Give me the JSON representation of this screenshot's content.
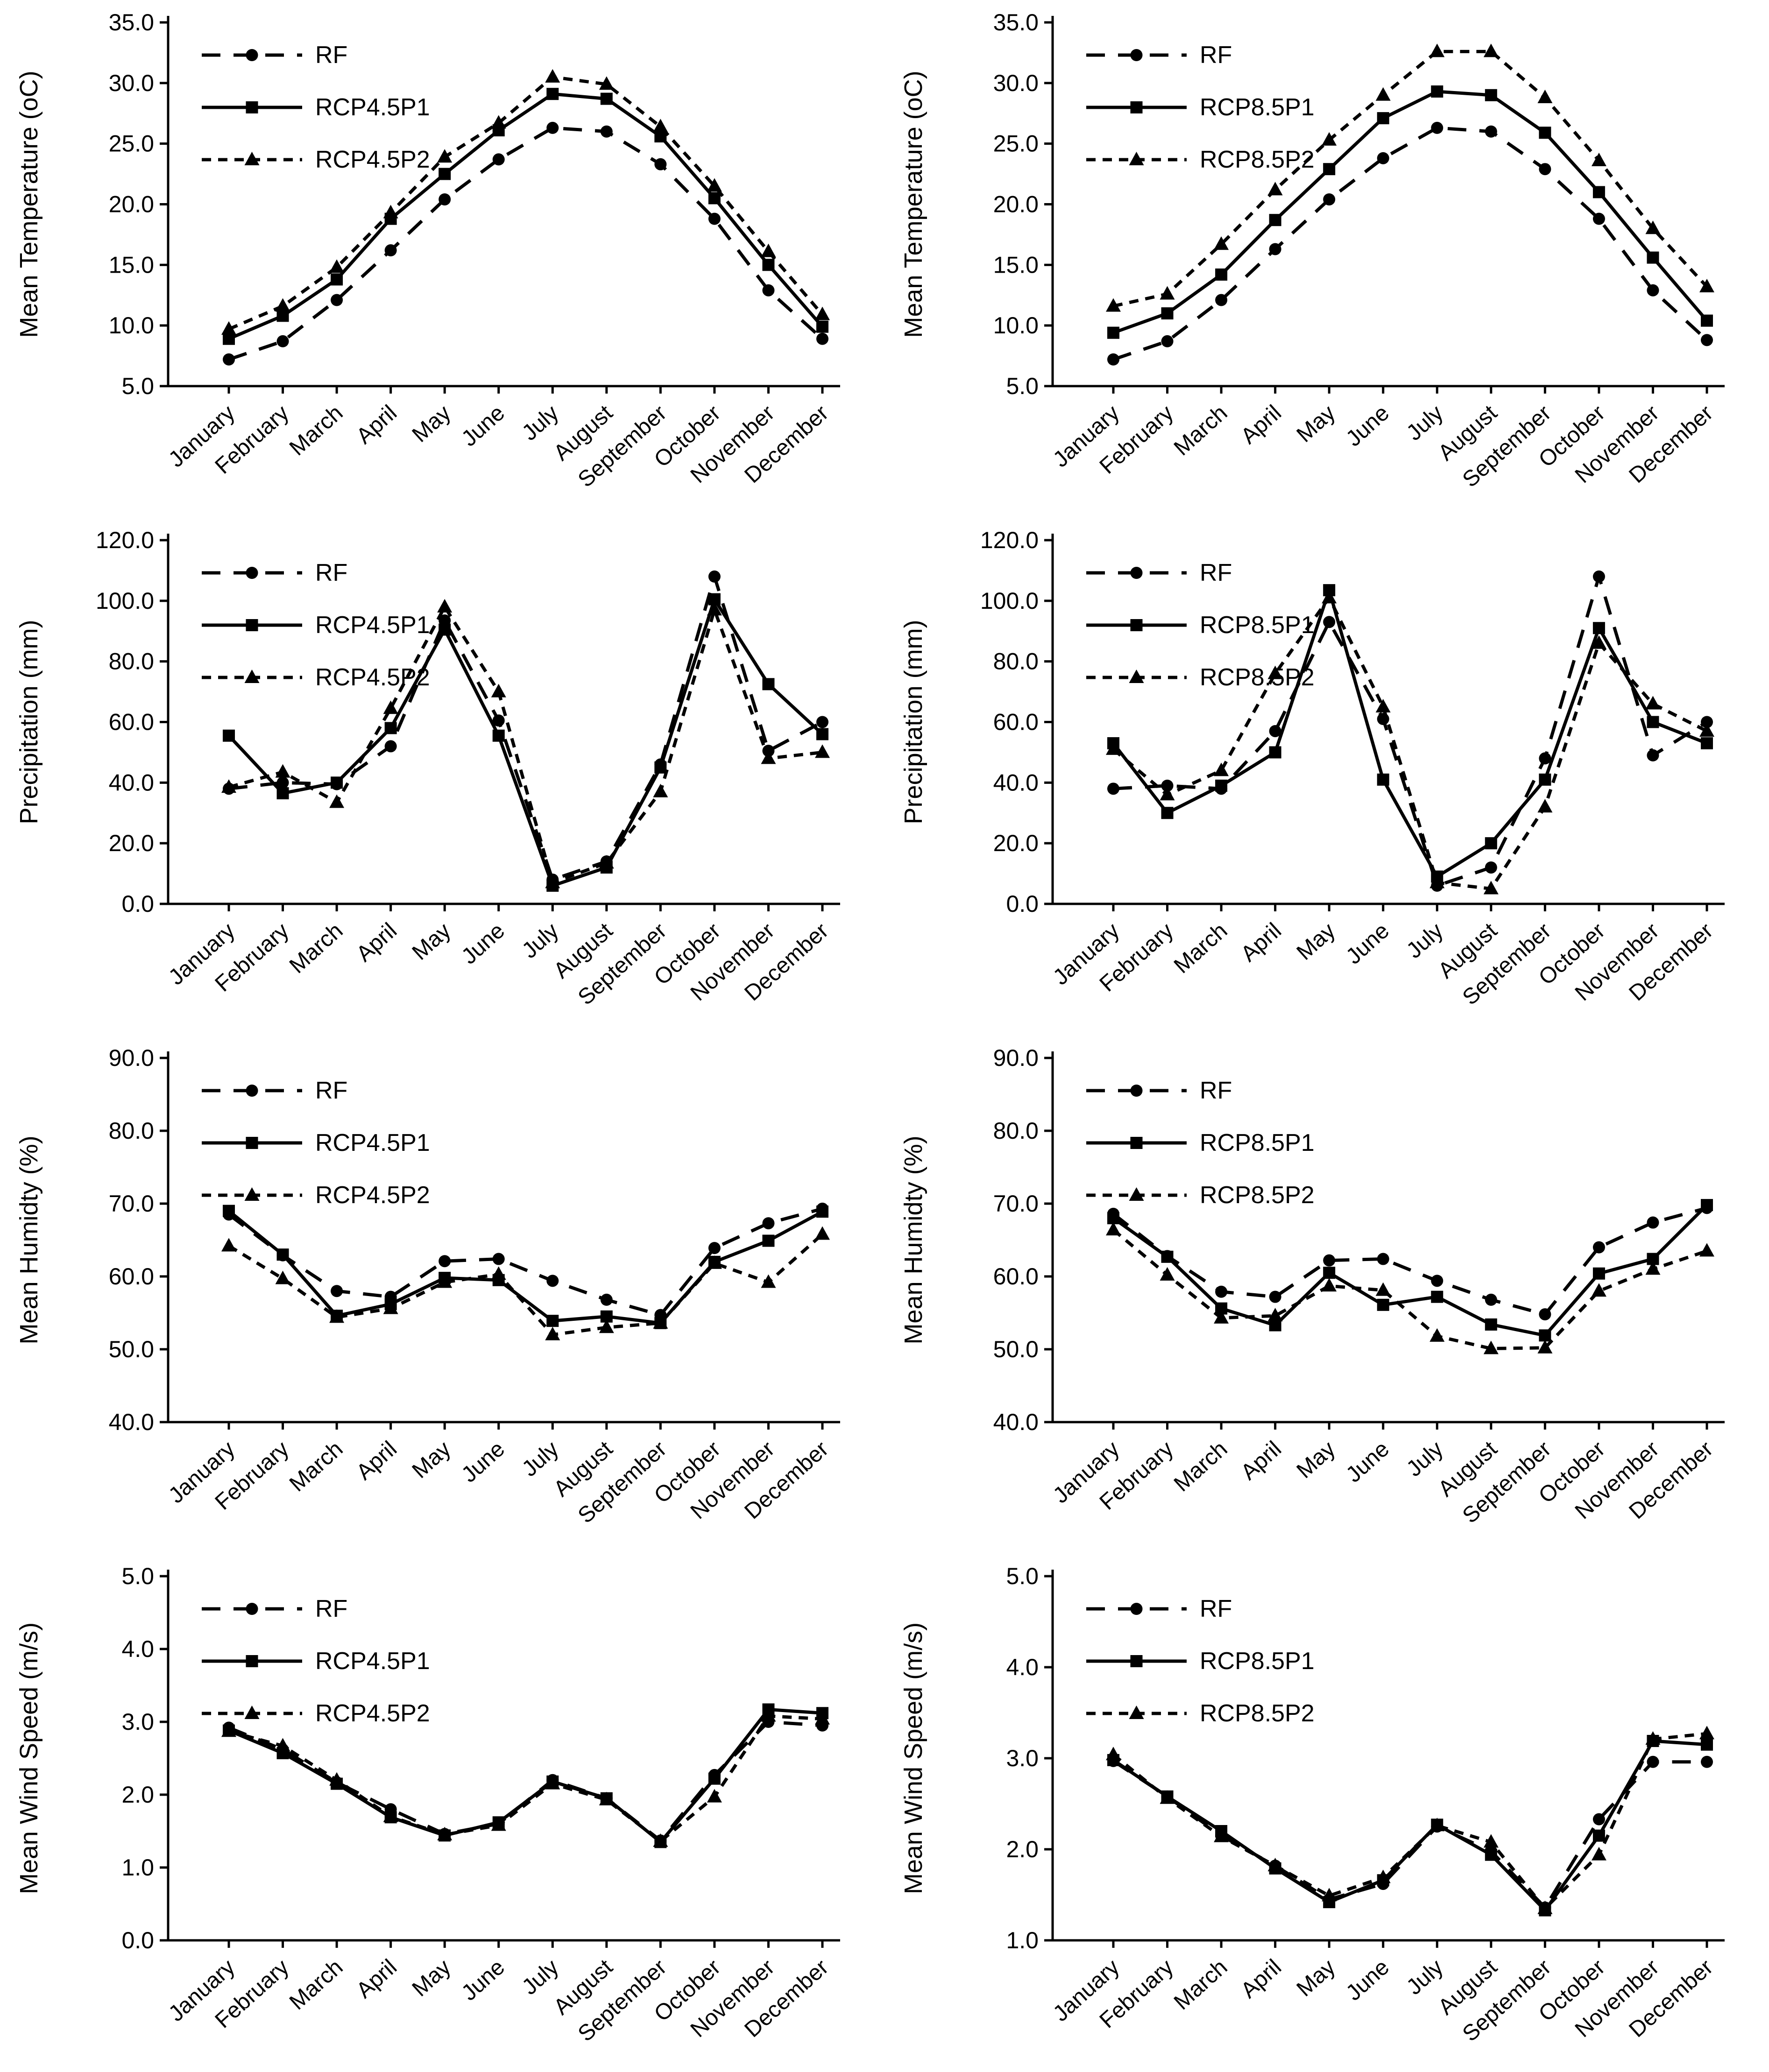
{
  "page": {
    "background_color": "#ffffff",
    "ink_color": "#000000",
    "description_months": [
      "January",
      "February",
      "March",
      "April",
      "May",
      "June",
      "July",
      "August",
      "September",
      "October",
      "November",
      "December"
    ]
  },
  "series_styles": {
    "RF": {
      "marker": "circle",
      "dash": "long",
      "legend_icon": "dashed-line-circle-marker"
    },
    "scenario1": {
      "marker": "square",
      "dash": "solid",
      "legend_icon": "solid-line-square-marker"
    },
    "scenario2": {
      "marker": "triangle",
      "dash": "short",
      "legend_icon": "dashed-line-triangle-marker"
    }
  },
  "chart_data": [
    {
      "id": "temperature-rcp45",
      "type": "line",
      "title": "",
      "xlabel": "",
      "ylabel": "Mean Temperature (oC)",
      "ylim": [
        5,
        35
      ],
      "yticks": [
        "5.0",
        "10.0",
        "15.0",
        "20.0",
        "25.0",
        "30.0",
        "35.0"
      ],
      "grid": false,
      "legend_position": "top-left",
      "categories": [
        "January",
        "February",
        "March",
        "April",
        "May",
        "June",
        "July",
        "August",
        "September",
        "October",
        "November",
        "December"
      ],
      "series": [
        {
          "name": "RF",
          "style": "RF",
          "values": [
            7.2,
            8.7,
            12.1,
            16.2,
            20.4,
            23.7,
            26.3,
            26.0,
            23.3,
            18.8,
            12.9,
            8.9
          ]
        },
        {
          "name": "RCP4.5P1",
          "style": "scenario1",
          "values": [
            8.9,
            10.8,
            13.8,
            18.8,
            22.5,
            26.1,
            29.1,
            28.7,
            25.6,
            20.5,
            15.0,
            9.9
          ]
        },
        {
          "name": "RCP4.5P2",
          "style": "scenario2",
          "values": [
            9.7,
            11.6,
            14.8,
            19.3,
            23.9,
            26.7,
            30.5,
            29.9,
            26.4,
            21.5,
            16.1,
            10.9
          ]
        }
      ]
    },
    {
      "id": "temperature-rcp85",
      "type": "line",
      "title": "",
      "xlabel": "",
      "ylabel": "Mean Temperature (oC)",
      "ylim": [
        5,
        35
      ],
      "yticks": [
        "5.0",
        "10.0",
        "15.0",
        "20.0",
        "25.0",
        "30.0",
        "35.0"
      ],
      "grid": false,
      "legend_position": "top-left",
      "categories": [
        "January",
        "February",
        "March",
        "April",
        "May",
        "June",
        "July",
        "August",
        "September",
        "October",
        "November",
        "December"
      ],
      "series": [
        {
          "name": "RF",
          "style": "RF",
          "values": [
            7.2,
            8.7,
            12.1,
            16.3,
            20.4,
            23.8,
            26.3,
            26.0,
            22.9,
            18.8,
            12.9,
            8.8
          ]
        },
        {
          "name": "RCP8.5P1",
          "style": "scenario1",
          "values": [
            9.4,
            11.0,
            14.2,
            18.7,
            22.9,
            27.1,
            29.3,
            29.0,
            25.9,
            21.0,
            15.6,
            10.4
          ]
        },
        {
          "name": "RCP8.5P2",
          "style": "scenario2",
          "values": [
            11.6,
            12.6,
            16.7,
            21.2,
            25.3,
            29.0,
            32.6,
            32.6,
            28.8,
            23.6,
            18.0,
            13.2
          ]
        }
      ]
    },
    {
      "id": "precipitation-rcp45",
      "type": "line",
      "title": "",
      "xlabel": "",
      "ylabel": "Precipitation (mm)",
      "ylim": [
        0,
        120
      ],
      "yticks": [
        "0.0",
        "20.0",
        "40.0",
        "60.0",
        "80.0",
        "100.0",
        "120.0"
      ],
      "grid": false,
      "legend_position": "top-left",
      "categories": [
        "January",
        "February",
        "March",
        "April",
        "May",
        "June",
        "July",
        "August",
        "September",
        "October",
        "November",
        "December"
      ],
      "series": [
        {
          "name": "RF",
          "style": "RF",
          "values": [
            38.0,
            40.0,
            39.5,
            52.0,
            93.5,
            60.5,
            8.0,
            14.0,
            46.0,
            108.0,
            50.5,
            60.0
          ]
        },
        {
          "name": "RCP4.5P1",
          "style": "scenario1",
          "values": [
            55.5,
            36.5,
            40.0,
            58.0,
            90.5,
            55.5,
            6.0,
            12.0,
            45.0,
            100.5,
            72.5,
            56.0
          ]
        },
        {
          "name": "RCP4.5P2",
          "style": "scenario2",
          "values": [
            38.5,
            43.5,
            33.5,
            64.5,
            98.0,
            70.0,
            7.0,
            13.5,
            37.0,
            97.0,
            48.0,
            50.0
          ]
        }
      ]
    },
    {
      "id": "precipitation-rcp85",
      "type": "line",
      "title": "",
      "xlabel": "",
      "ylabel": "Precipitation (mm)",
      "ylim": [
        0,
        120
      ],
      "yticks": [
        "0.0",
        "20.0",
        "40.0",
        "60.0",
        "80.0",
        "100.0",
        "120.0"
      ],
      "grid": false,
      "legend_position": "top-left",
      "categories": [
        "January",
        "February",
        "March",
        "April",
        "May",
        "June",
        "July",
        "August",
        "September",
        "October",
        "November",
        "December"
      ],
      "series": [
        {
          "name": "RF",
          "style": "RF",
          "values": [
            38.0,
            39.0,
            38.0,
            57.0,
            93.0,
            61.0,
            6.0,
            12.0,
            48.0,
            108.0,
            49.0,
            60.0
          ]
        },
        {
          "name": "RCP8.5P1",
          "style": "scenario1",
          "values": [
            53.0,
            30.0,
            39.0,
            50.0,
            103.5,
            41.0,
            9.0,
            20.0,
            41.0,
            91.0,
            60.0,
            53.0
          ]
        },
        {
          "name": "RCP8.5P2",
          "style": "scenario2",
          "values": [
            51.0,
            36.0,
            44.0,
            76.0,
            101.0,
            65.0,
            7.0,
            5.0,
            32.0,
            86.0,
            66.0,
            57.0
          ]
        }
      ]
    },
    {
      "id": "humidity-rcp45",
      "type": "line",
      "title": "",
      "xlabel": "",
      "ylabel": "Mean Humidty (%)",
      "ylim": [
        40,
        90
      ],
      "yticks": [
        "40.0",
        "50.0",
        "60.0",
        "70.0",
        "80.0",
        "90.0"
      ],
      "grid": false,
      "legend_position": "top-left",
      "categories": [
        "January",
        "February",
        "March",
        "April",
        "May",
        "June",
        "July",
        "August",
        "September",
        "October",
        "November",
        "December"
      ],
      "series": [
        {
          "name": "RF",
          "style": "RF",
          "values": [
            68.5,
            62.9,
            58.0,
            57.2,
            62.1,
            62.4,
            59.4,
            56.8,
            54.7,
            63.9,
            67.3,
            69.3
          ]
        },
        {
          "name": "RCP4.5P1",
          "style": "scenario1",
          "values": [
            69.0,
            63.0,
            54.6,
            56.2,
            59.8,
            59.5,
            53.9,
            54.5,
            53.6,
            62.0,
            64.9,
            68.9
          ]
        },
        {
          "name": "RCP4.5P2",
          "style": "scenario2",
          "values": [
            64.2,
            59.7,
            54.4,
            55.6,
            59.2,
            60.3,
            52.0,
            53.0,
            53.6,
            61.8,
            59.2,
            65.8
          ]
        }
      ]
    },
    {
      "id": "humidity-rcp85",
      "type": "line",
      "title": "",
      "xlabel": "",
      "ylabel": "Mean Humidty (%)",
      "ylim": [
        40,
        90
      ],
      "yticks": [
        "40.0",
        "50.0",
        "60.0",
        "70.0",
        "80.0",
        "90.0"
      ],
      "grid": false,
      "legend_position": "top-left",
      "categories": [
        "January",
        "February",
        "March",
        "April",
        "May",
        "June",
        "July",
        "August",
        "September",
        "October",
        "November",
        "December"
      ],
      "series": [
        {
          "name": "RF",
          "style": "RF",
          "values": [
            68.6,
            62.8,
            57.9,
            57.2,
            62.2,
            62.4,
            59.4,
            56.8,
            54.8,
            64.0,
            67.4,
            69.4
          ]
        },
        {
          "name": "RCP8.5P1",
          "style": "scenario1",
          "values": [
            68.0,
            62.7,
            55.6,
            53.3,
            60.5,
            56.1,
            57.2,
            53.4,
            51.9,
            60.4,
            62.4,
            69.8
          ]
        },
        {
          "name": "RCP8.5P2",
          "style": "scenario2",
          "values": [
            66.4,
            60.2,
            54.3,
            54.6,
            58.7,
            58.1,
            51.8,
            50.1,
            50.2,
            58.0,
            61.0,
            63.5
          ]
        }
      ]
    },
    {
      "id": "wind-speed-rcp45",
      "type": "line",
      "title": "",
      "xlabel": "",
      "ylabel": "Mean Wind Speed (m/s)",
      "ylim": [
        0,
        5
      ],
      "yticks": [
        "0.0",
        "1.0",
        "2.0",
        "3.0",
        "4.0",
        "5.0"
      ],
      "grid": false,
      "legend_position": "top-left",
      "categories": [
        "January",
        "February",
        "March",
        "April",
        "May",
        "June",
        "July",
        "August",
        "September",
        "October",
        "November",
        "December"
      ],
      "series": [
        {
          "name": "RF",
          "style": "RF",
          "values": [
            2.92,
            2.62,
            2.17,
            1.8,
            1.46,
            1.6,
            2.2,
            1.95,
            1.37,
            2.27,
            3.0,
            2.95
          ]
        },
        {
          "name": "RCP4.5P1",
          "style": "scenario1",
          "values": [
            2.88,
            2.57,
            2.15,
            1.69,
            1.44,
            1.62,
            2.18,
            1.95,
            1.35,
            2.22,
            3.17,
            3.12
          ]
        },
        {
          "name": "RCP4.5P2",
          "style": "scenario2",
          "values": [
            2.87,
            2.67,
            2.2,
            1.7,
            1.45,
            1.58,
            2.15,
            1.93,
            1.36,
            1.97,
            3.08,
            3.04
          ]
        }
      ]
    },
    {
      "id": "wind-speed-rcp85",
      "type": "line",
      "title": "",
      "xlabel": "",
      "ylabel": "Mean Wind Speed (m/s)",
      "ylim": [
        1,
        5
      ],
      "yticks": [
        "1.0",
        "2.0",
        "3.0",
        "4.0",
        "5.0"
      ],
      "grid": false,
      "legend_position": "top-left",
      "categories": [
        "January",
        "February",
        "March",
        "April",
        "May",
        "June",
        "July",
        "August",
        "September",
        "October",
        "November",
        "December"
      ],
      "series": [
        {
          "name": "RF",
          "style": "RF",
          "values": [
            2.97,
            2.58,
            2.15,
            1.82,
            1.45,
            1.62,
            2.25,
            1.98,
            1.36,
            2.33,
            2.96,
            2.96
          ]
        },
        {
          "name": "RCP8.5P1",
          "style": "scenario1",
          "values": [
            2.98,
            2.58,
            2.2,
            1.79,
            1.42,
            1.66,
            2.27,
            1.94,
            1.33,
            2.15,
            3.19,
            3.15
          ]
        },
        {
          "name": "RCP8.5P2",
          "style": "scenario2",
          "values": [
            3.04,
            2.56,
            2.14,
            1.82,
            1.49,
            1.69,
            2.26,
            2.08,
            1.35,
            1.94,
            3.21,
            3.27
          ]
        }
      ]
    }
  ]
}
